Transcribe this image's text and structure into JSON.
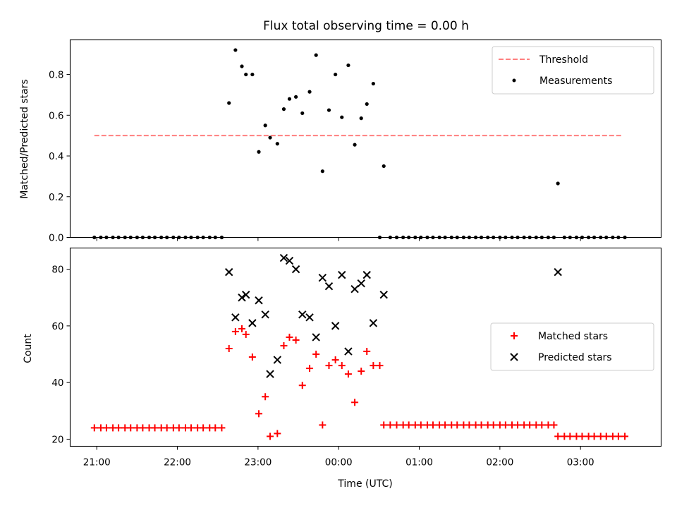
{
  "chart_data": [
    {
      "type": "scatter",
      "title": "Flux total observing time = 0.00 h",
      "xlabel": "",
      "ylabel": "Matched/Predicted stars",
      "x_unit": "hours since 21:00 UTC",
      "xlim": [
        -0.33,
        7.0
      ],
      "ylim": [
        0.0,
        0.97
      ],
      "yticks": [
        0.0,
        0.2,
        0.4,
        0.6,
        0.8
      ],
      "ytick_labels": [
        "0.0",
        "0.2",
        "0.4",
        "0.6",
        "0.8"
      ],
      "legend": {
        "position": "top-right",
        "entries": [
          "Threshold",
          "Measurements"
        ]
      },
      "threshold": {
        "name": "Threshold",
        "value": 0.5,
        "x_range": [
          -0.03,
          6.53
        ],
        "color": "#ff7f7f"
      },
      "series": [
        {
          "name": "Measurements",
          "color": "#000000",
          "x": [
            -0.03,
            0.05,
            0.12,
            0.2,
            0.27,
            0.35,
            0.42,
            0.5,
            0.57,
            0.65,
            0.72,
            0.8,
            0.87,
            0.95,
            1.02,
            1.1,
            1.17,
            1.25,
            1.32,
            1.4,
            1.47,
            1.55,
            1.64,
            1.72,
            1.8,
            1.85,
            1.93,
            2.01,
            2.09,
            2.15,
            2.24,
            2.32,
            2.39,
            2.47,
            2.55,
            2.64,
            2.72,
            2.8,
            2.88,
            2.96,
            3.04,
            3.12,
            3.2,
            3.28,
            3.35,
            3.43,
            3.51,
            3.56,
            3.64,
            3.72,
            3.8,
            3.87,
            3.95,
            4.02,
            4.1,
            4.17,
            4.25,
            4.32,
            4.4,
            4.47,
            4.55,
            4.62,
            4.7,
            4.77,
            4.85,
            4.92,
            5.0,
            5.07,
            5.15,
            5.22,
            5.3,
            5.37,
            5.45,
            5.52,
            5.6,
            5.67,
            5.72,
            5.8,
            5.87,
            5.95,
            6.02,
            6.1,
            6.17,
            6.25,
            6.32,
            6.4,
            6.47,
            6.55
          ],
          "y": [
            0,
            0,
            0,
            0,
            0,
            0,
            0,
            0,
            0,
            0,
            0,
            0,
            0,
            0,
            0,
            0,
            0,
            0,
            0,
            0,
            0,
            0,
            0.66,
            0.92,
            0.84,
            0.8,
            0.8,
            0.42,
            0.55,
            0.49,
            0.46,
            0.63,
            0.68,
            0.69,
            0.61,
            0.715,
            0.895,
            0.325,
            0.625,
            0.8,
            0.59,
            0.845,
            0.455,
            0.585,
            0.655,
            0.755,
            0.0,
            0.35,
            0,
            0,
            0,
            0,
            0,
            0,
            0,
            0,
            0,
            0,
            0,
            0,
            0,
            0,
            0,
            0,
            0,
            0,
            0,
            0,
            0,
            0,
            0,
            0,
            0,
            0,
            0,
            0,
            0.265,
            0,
            0,
            0,
            0,
            0,
            0,
            0,
            0,
            0,
            0,
            0
          ]
        }
      ]
    },
    {
      "type": "scatter",
      "title": "",
      "xlabel": "Time (UTC)",
      "ylabel": "Count",
      "x_unit": "hours since 21:00 UTC",
      "xlim": [
        -0.33,
        7.0
      ],
      "ylim": [
        17.5,
        87.5
      ],
      "yticks": [
        20,
        40,
        60,
        80
      ],
      "ytick_labels": [
        "20",
        "40",
        "60",
        "80"
      ],
      "xticks": [
        0,
        1,
        2,
        3,
        4,
        5,
        6
      ],
      "xtick_labels": [
        "21:00",
        "22:00",
        "23:00",
        "00:00",
        "01:00",
        "02:00",
        "03:00"
      ],
      "legend": {
        "position": "center-right",
        "entries": [
          "Matched stars",
          "Predicted stars"
        ]
      },
      "series": [
        {
          "name": "Matched stars",
          "marker": "+",
          "color": "#ff0000",
          "x": [
            -0.03,
            0.05,
            0.12,
            0.2,
            0.27,
            0.35,
            0.42,
            0.5,
            0.57,
            0.65,
            0.72,
            0.8,
            0.87,
            0.95,
            1.02,
            1.1,
            1.17,
            1.25,
            1.32,
            1.4,
            1.47,
            1.55,
            1.64,
            1.72,
            1.8,
            1.85,
            1.93,
            2.01,
            2.09,
            2.15,
            2.24,
            2.32,
            2.39,
            2.47,
            2.55,
            2.64,
            2.72,
            2.8,
            2.88,
            2.96,
            3.04,
            3.12,
            3.2,
            3.28,
            3.35,
            3.43,
            3.51,
            3.56,
            3.64,
            3.72,
            3.8,
            3.87,
            3.95,
            4.02,
            4.1,
            4.17,
            4.25,
            4.32,
            4.4,
            4.47,
            4.55,
            4.62,
            4.7,
            4.77,
            4.85,
            4.92,
            5.0,
            5.07,
            5.15,
            5.22,
            5.3,
            5.37,
            5.45,
            5.52,
            5.6,
            5.67,
            5.72,
            5.8,
            5.87,
            5.95,
            6.02,
            6.1,
            6.17,
            6.25,
            6.32,
            6.4,
            6.47,
            6.55
          ],
          "y": [
            24,
            24,
            24,
            24,
            24,
            24,
            24,
            24,
            24,
            24,
            24,
            24,
            24,
            24,
            24,
            24,
            24,
            24,
            24,
            24,
            24,
            24,
            52,
            58,
            59,
            57,
            49,
            29,
            35,
            21,
            22,
            53,
            56,
            55,
            39,
            45,
            50,
            25,
            46,
            48,
            46,
            43,
            33,
            44,
            51,
            46,
            46,
            25,
            25,
            25,
            25,
            25,
            25,
            25,
            25,
            25,
            25,
            25,
            25,
            25,
            25,
            25,
            25,
            25,
            25,
            25,
            25,
            25,
            25,
            25,
            25,
            25,
            25,
            25,
            25,
            25,
            21,
            21,
            21,
            21,
            21,
            21,
            21,
            21,
            21,
            21,
            21,
            21
          ]
        },
        {
          "name": "Predicted stars",
          "marker": "x",
          "color": "#000000",
          "x": [
            1.64,
            1.72,
            1.8,
            1.85,
            1.93,
            2.01,
            2.09,
            2.15,
            2.24,
            2.32,
            2.39,
            2.47,
            2.55,
            2.64,
            2.72,
            2.8,
            2.88,
            2.96,
            3.04,
            3.12,
            3.2,
            3.28,
            3.35,
            3.43,
            3.56,
            5.72
          ],
          "y": [
            79,
            63,
            70,
            71,
            61,
            69,
            64,
            43,
            48,
            84,
            83,
            80,
            64,
            63,
            56,
            77,
            74,
            60,
            78,
            51,
            73,
            75,
            78,
            61,
            71,
            79
          ]
        }
      ]
    }
  ]
}
